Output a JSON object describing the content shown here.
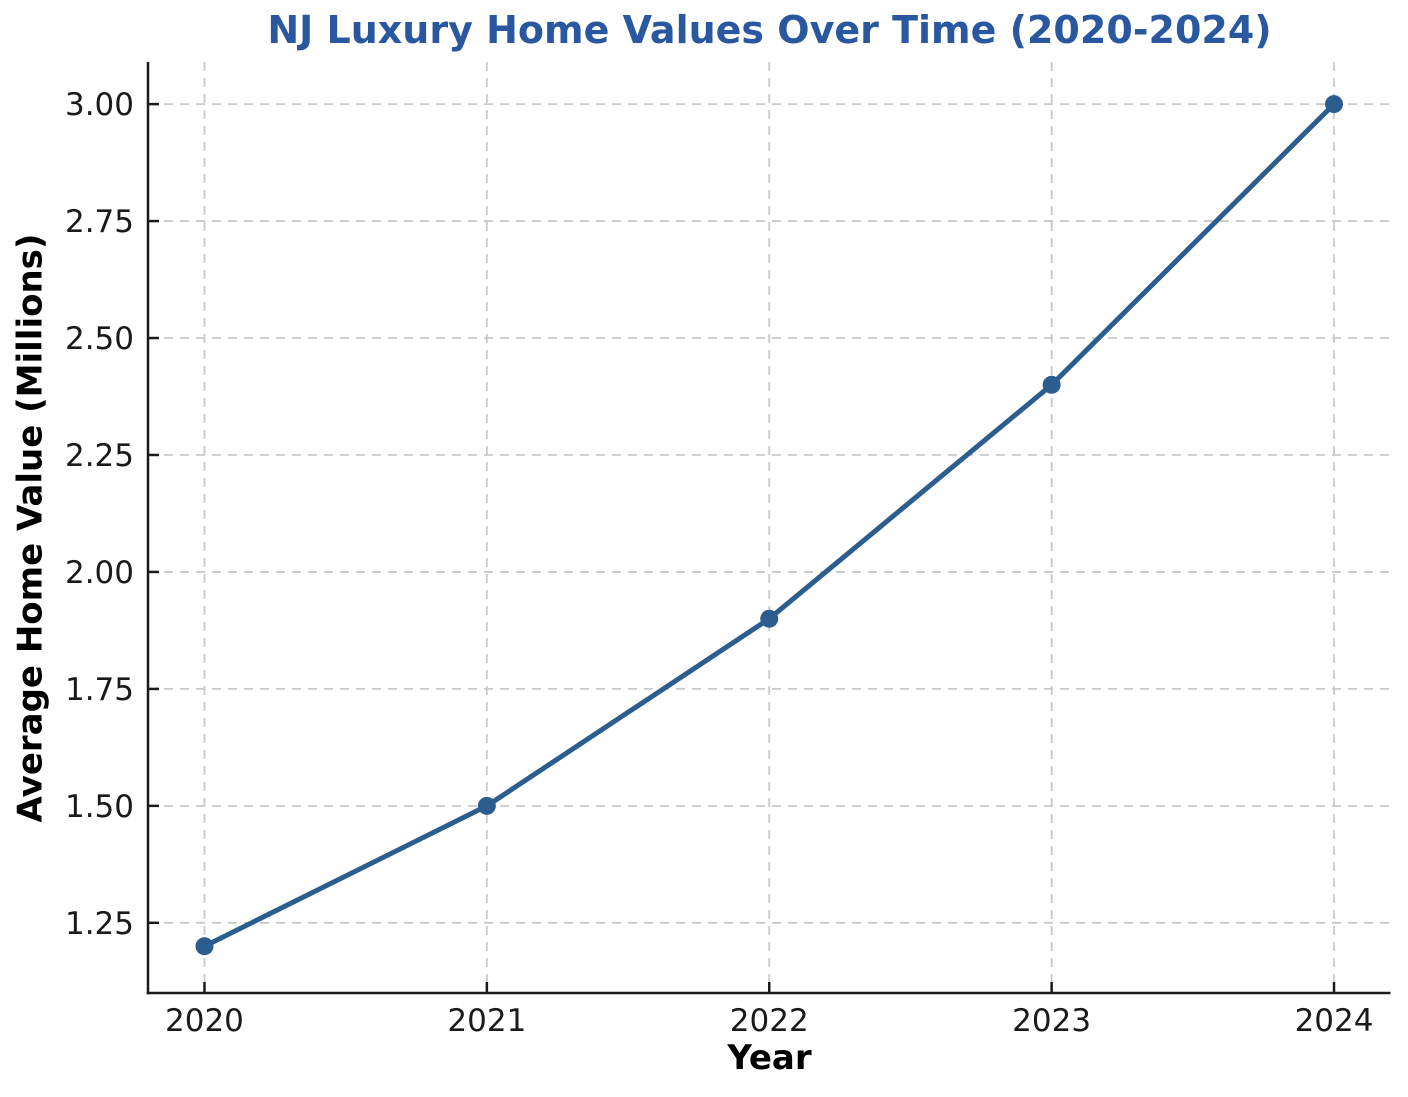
{
  "chart_data": {
    "type": "line",
    "title": "NJ Luxury Home Values Over Time (2020-2024)",
    "xlabel": "Year",
    "ylabel": "Average Home Value (Millions)",
    "x": [
      2020,
      2021,
      2022,
      2023,
      2024
    ],
    "series": [
      {
        "name": "Average Home Value (Millions)",
        "values": [
          1.2,
          1.5,
          1.9,
          2.4,
          3.0
        ]
      }
    ],
    "xtick_labels": [
      "2020",
      "2021",
      "2022",
      "2023",
      "2024"
    ],
    "ytick_values": [
      1.25,
      1.5,
      1.75,
      2.0,
      2.25,
      2.5,
      2.75,
      3.0
    ],
    "ytick_labels": [
      "1.25",
      "1.50",
      "1.75",
      "2.00",
      "2.25",
      "2.50",
      "2.75",
      "3.00"
    ],
    "xlim": [
      2019.8,
      2024.2
    ],
    "ylim": [
      1.1,
      3.09
    ],
    "grid": true,
    "grid_style": "dashed",
    "legend": "none",
    "marker": "circle",
    "colors": {
      "line": "#2b5d8f",
      "marker": "#2b5d8f",
      "title": "#2a58a0",
      "grid": "#c9c9c9",
      "axis": "#1a1a1a",
      "tick_label": "#1a1a1a",
      "axis_label": "#000000",
      "background": "#ffffff"
    }
  }
}
